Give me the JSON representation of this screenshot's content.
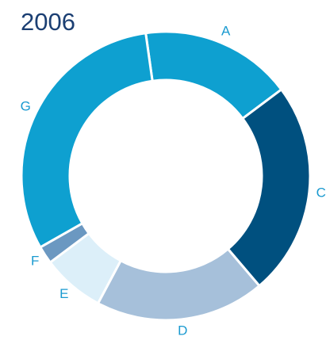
{
  "chart_data": {
    "type": "donut",
    "title": "2006",
    "categories": [
      "A",
      "C",
      "D",
      "E",
      "F",
      "G"
    ],
    "values": [
      17,
      24,
      19,
      7,
      2,
      31
    ],
    "colors": [
      "#0ea0d0",
      "#00507f",
      "#a6c0da",
      "#dceff9",
      "#6b98c1",
      "#0ea0d0"
    ]
  }
}
